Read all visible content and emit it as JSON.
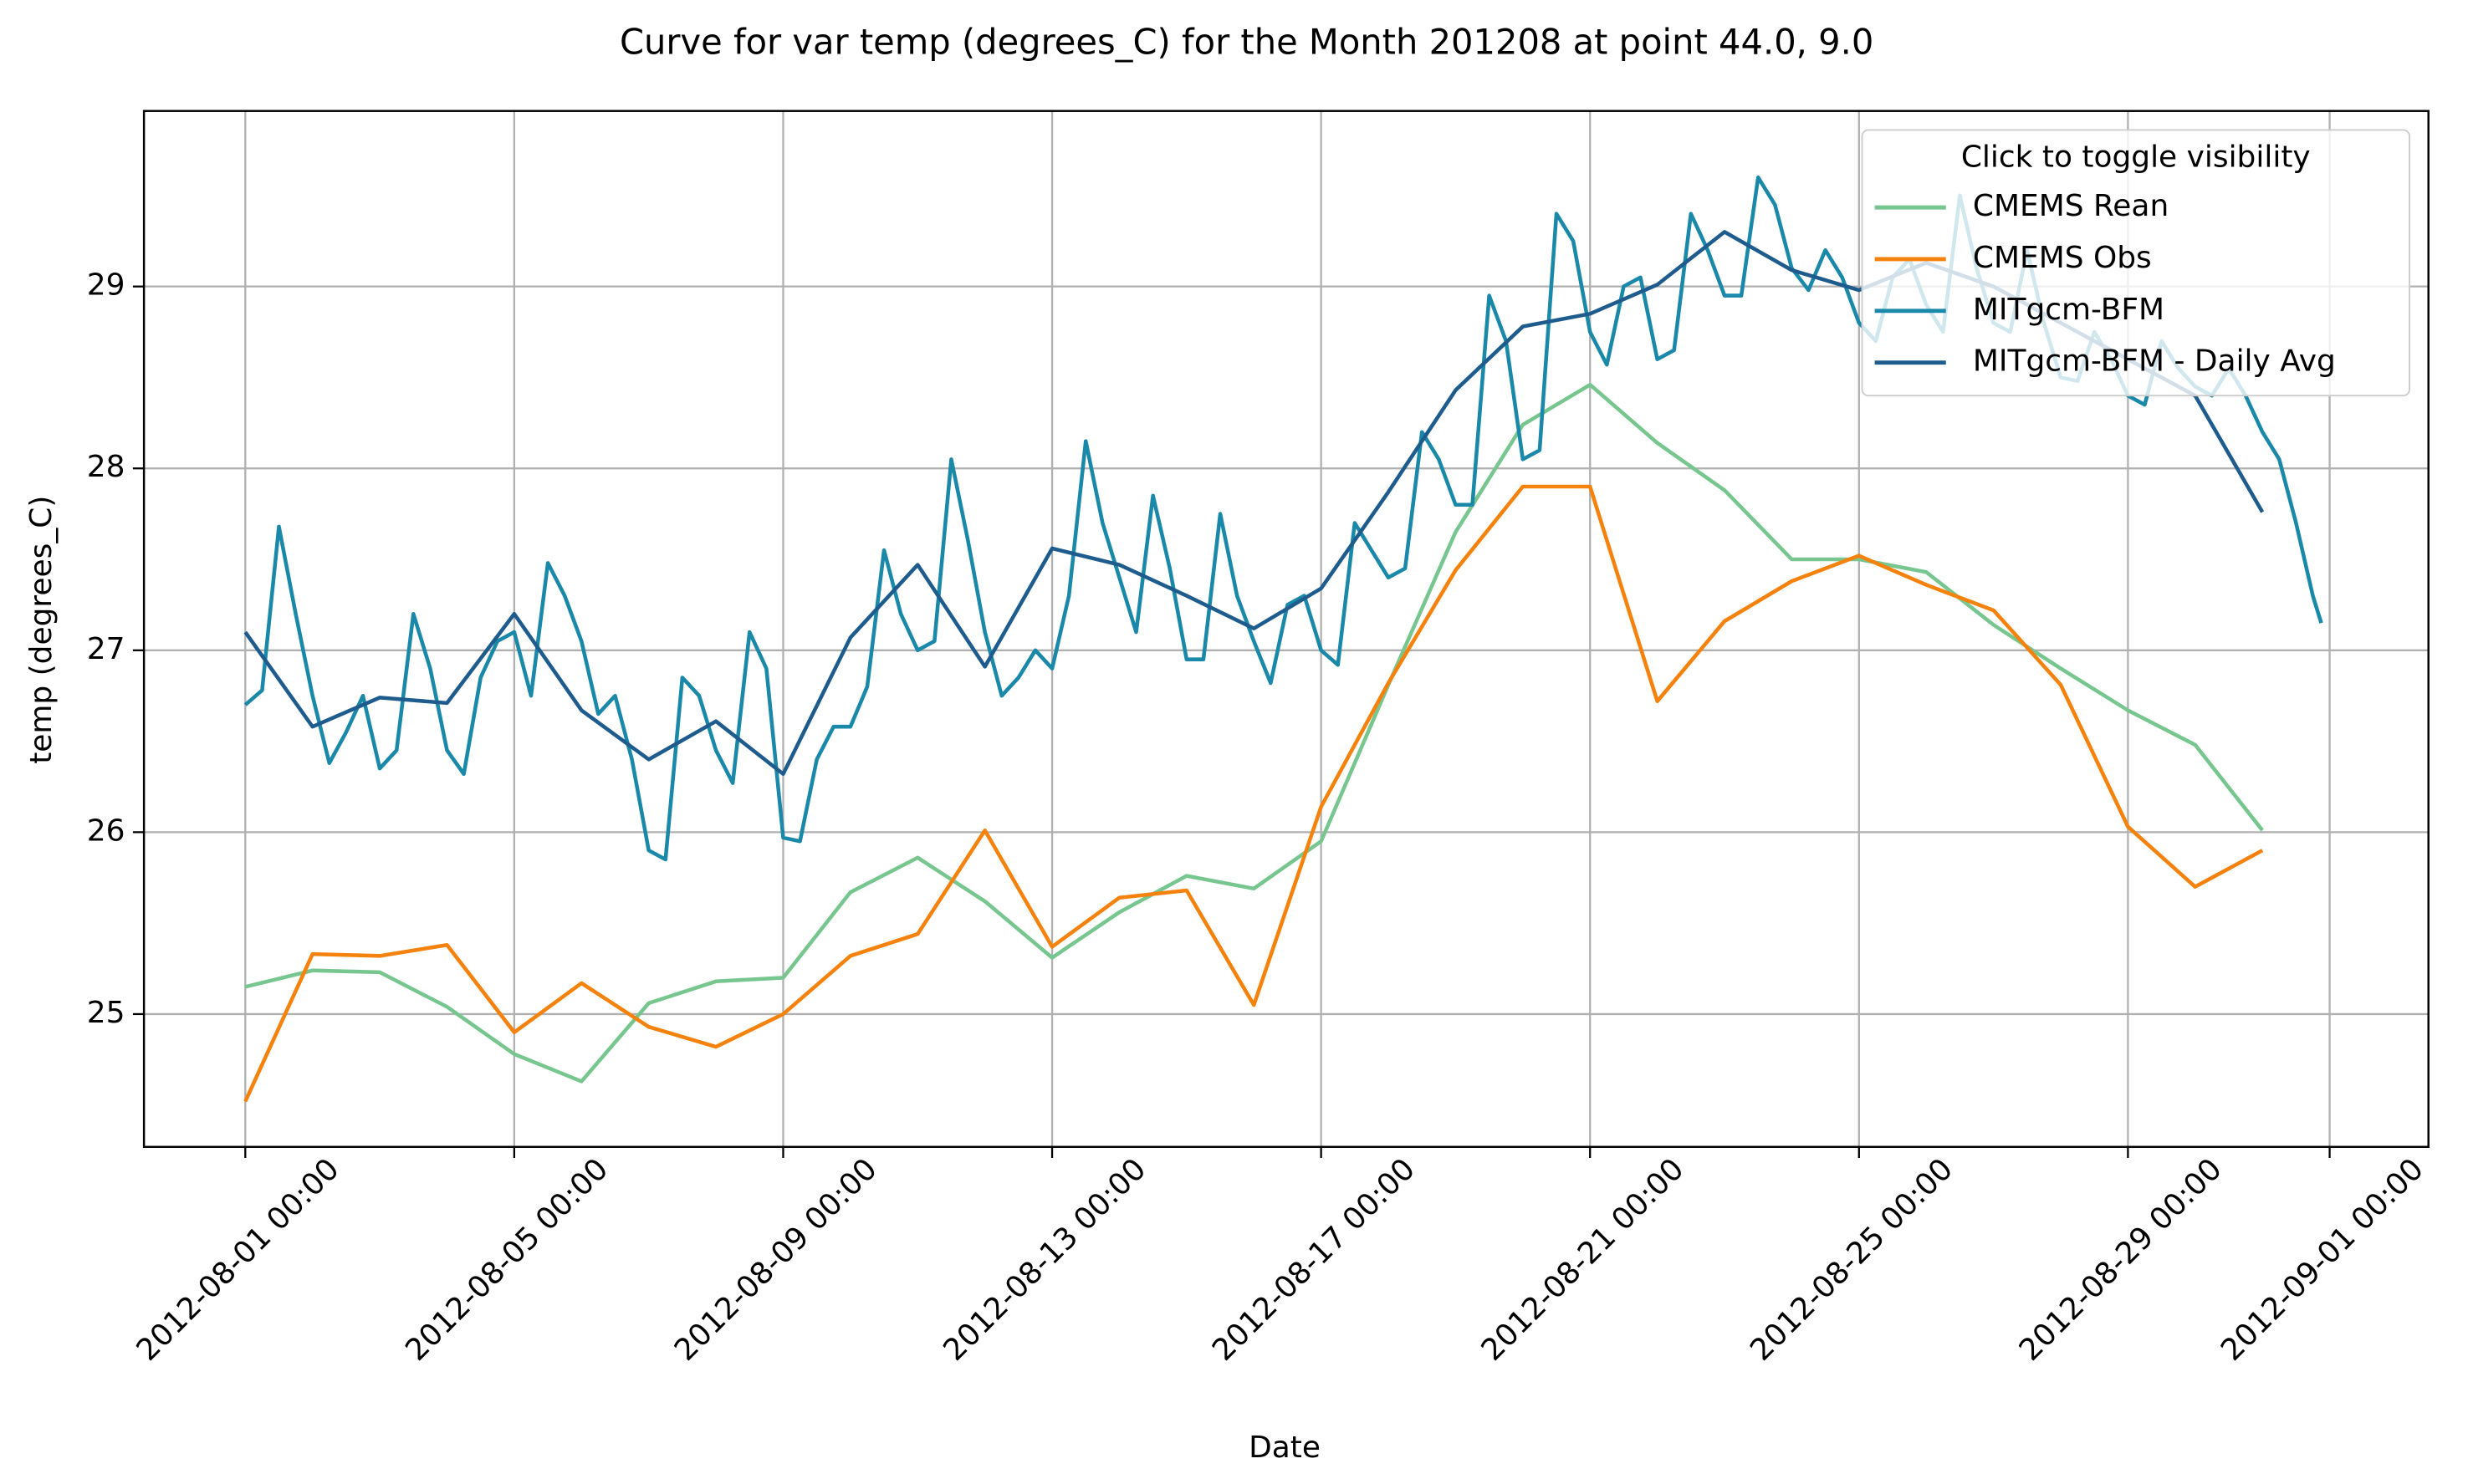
{
  "chart_data": {
    "type": "line",
    "title": "Curve for var temp (degrees_C) for the Month 201208 at point 44.0, 9.0",
    "xlabel": "Date",
    "ylabel": "temp (degrees_C)",
    "legend_title": "Click to toggle visibility",
    "legend": "upper right",
    "grid": true,
    "xlim": [
      "2012-07-30 11:50",
      "2012-09-02 11:16"
    ],
    "xticks": [
      "2012-08-01 00:00",
      "2012-08-05 00:00",
      "2012-08-09 00:00",
      "2012-08-13 00:00",
      "2012-08-17 00:00",
      "2012-08-21 00:00",
      "2012-08-25 00:00",
      "2012-08-29 00:00",
      "2012-09-01 00:00"
    ],
    "ylim": [
      24.27,
      29.965
    ],
    "yticks": [
      25,
      26,
      27,
      28,
      29
    ],
    "x": [
      "2012-08-01 00:00",
      "2012-08-02 00:00",
      "2012-08-03 00:00",
      "2012-08-04 00:00",
      "2012-08-05 00:00",
      "2012-08-06 00:00",
      "2012-08-07 00:00",
      "2012-08-08 00:00",
      "2012-08-09 00:00",
      "2012-08-10 00:00",
      "2012-08-11 00:00",
      "2012-08-12 00:00",
      "2012-08-13 00:00",
      "2012-08-14 00:00",
      "2012-08-15 00:00",
      "2012-08-16 00:00",
      "2012-08-17 00:00",
      "2012-08-18 00:00",
      "2012-08-19 00:00",
      "2012-08-20 00:00",
      "2012-08-21 00:00",
      "2012-08-22 00:00",
      "2012-08-23 00:00",
      "2012-08-24 00:00",
      "2012-08-25 00:00",
      "2012-08-26 00:00",
      "2012-08-27 00:00",
      "2012-08-28 00:00",
      "2012-08-29 00:00",
      "2012-08-30 00:00",
      "2012-08-31 00:00"
    ],
    "series": [
      {
        "name": "CMEMS Rean",
        "color": "#78c68f",
        "values": [
          25.15,
          25.24,
          25.23,
          25.04,
          24.78,
          24.63,
          25.06,
          25.18,
          25.2,
          25.67,
          25.86,
          25.62,
          25.31,
          25.56,
          25.76,
          25.69,
          25.95,
          26.81,
          27.65,
          28.24,
          28.46,
          28.14,
          27.88,
          27.5,
          27.5,
          27.43,
          27.14,
          26.9,
          26.67,
          26.48,
          26.01
        ]
      },
      {
        "name": "CMEMS Obs",
        "color": "#f5820d",
        "values": [
          24.52,
          25.33,
          25.32,
          25.38,
          24.9,
          25.17,
          24.93,
          24.82,
          25.0,
          25.32,
          25.44,
          26.01,
          25.37,
          25.64,
          25.68,
          25.05,
          26.14,
          26.82,
          27.44,
          27.9,
          27.9,
          26.72,
          27.16,
          27.38,
          27.52,
          27.36,
          27.22,
          26.81,
          26.03,
          25.7,
          25.9
        ]
      },
      {
        "name": "MITgcm-BFM",
        "color": "#1a88a8",
        "x": [
          "2012-08-01 00:00",
          "2012-08-01 06:00",
          "2012-08-01 12:00",
          "2012-08-01 18:00",
          "2012-08-02 00:00",
          "2012-08-02 06:00",
          "2012-08-02 12:00",
          "2012-08-02 18:00",
          "2012-08-03 00:00",
          "2012-08-03 06:00",
          "2012-08-03 12:00",
          "2012-08-03 18:00",
          "2012-08-04 00:00",
          "2012-08-04 06:00",
          "2012-08-04 12:00",
          "2012-08-04 18:00",
          "2012-08-05 00:00",
          "2012-08-05 06:00",
          "2012-08-05 12:00",
          "2012-08-05 18:00",
          "2012-08-06 00:00",
          "2012-08-06 06:00",
          "2012-08-06 12:00",
          "2012-08-06 18:00",
          "2012-08-07 00:00",
          "2012-08-07 06:00",
          "2012-08-07 12:00",
          "2012-08-07 18:00",
          "2012-08-08 00:00",
          "2012-08-08 06:00",
          "2012-08-08 12:00",
          "2012-08-08 18:00",
          "2012-08-09 00:00",
          "2012-08-09 06:00",
          "2012-08-09 12:00",
          "2012-08-09 18:00",
          "2012-08-10 00:00",
          "2012-08-10 06:00",
          "2012-08-10 12:00",
          "2012-08-10 18:00",
          "2012-08-11 00:00",
          "2012-08-11 06:00",
          "2012-08-11 12:00",
          "2012-08-11 18:00",
          "2012-08-12 00:00",
          "2012-08-12 06:00",
          "2012-08-12 12:00",
          "2012-08-12 18:00",
          "2012-08-13 00:00",
          "2012-08-13 06:00",
          "2012-08-13 12:00",
          "2012-08-13 18:00",
          "2012-08-14 00:00",
          "2012-08-14 06:00",
          "2012-08-14 12:00",
          "2012-08-14 18:00",
          "2012-08-15 00:00",
          "2012-08-15 06:00",
          "2012-08-15 12:00",
          "2012-08-15 18:00",
          "2012-08-16 00:00",
          "2012-08-16 06:00",
          "2012-08-16 12:00",
          "2012-08-16 18:00",
          "2012-08-17 00:00",
          "2012-08-17 06:00",
          "2012-08-17 12:00",
          "2012-08-17 18:00",
          "2012-08-18 00:00",
          "2012-08-18 06:00",
          "2012-08-18 12:00",
          "2012-08-18 18:00",
          "2012-08-19 00:00",
          "2012-08-19 06:00",
          "2012-08-19 12:00",
          "2012-08-19 18:00",
          "2012-08-20 00:00",
          "2012-08-20 06:00",
          "2012-08-20 12:00",
          "2012-08-20 18:00",
          "2012-08-21 00:00",
          "2012-08-21 06:00",
          "2012-08-21 12:00",
          "2012-08-21 18:00",
          "2012-08-22 00:00",
          "2012-08-22 06:00",
          "2012-08-22 12:00",
          "2012-08-22 18:00",
          "2012-08-23 00:00",
          "2012-08-23 06:00",
          "2012-08-23 12:00",
          "2012-08-23 18:00",
          "2012-08-24 00:00",
          "2012-08-24 06:00",
          "2012-08-24 12:00",
          "2012-08-24 18:00",
          "2012-08-25 00:00",
          "2012-08-25 06:00",
          "2012-08-25 12:00",
          "2012-08-25 18:00",
          "2012-08-26 00:00",
          "2012-08-26 06:00",
          "2012-08-26 12:00",
          "2012-08-26 18:00",
          "2012-08-27 00:00",
          "2012-08-27 06:00",
          "2012-08-27 12:00",
          "2012-08-27 18:00",
          "2012-08-28 00:00",
          "2012-08-28 06:00",
          "2012-08-28 12:00",
          "2012-08-28 18:00",
          "2012-08-29 00:00",
          "2012-08-29 06:00",
          "2012-08-29 12:00",
          "2012-08-29 18:00",
          "2012-08-30 00:00",
          "2012-08-30 06:00",
          "2012-08-30 12:00",
          "2012-08-30 18:00",
          "2012-08-31 00:00",
          "2012-08-31 06:00",
          "2012-08-31 12:00",
          "2012-08-31 18:00",
          "2012-08-31 21:00"
        ],
        "values": [
          26.7,
          26.78,
          27.68,
          27.2,
          26.75,
          26.38,
          26.55,
          26.75,
          26.35,
          26.45,
          27.2,
          26.9,
          26.45,
          26.32,
          26.85,
          27.05,
          27.1,
          26.75,
          27.48,
          27.3,
          27.05,
          26.65,
          26.75,
          26.4,
          25.9,
          25.85,
          26.85,
          26.75,
          26.45,
          26.27,
          27.1,
          26.9,
          25.97,
          25.95,
          26.4,
          26.58,
          26.58,
          26.8,
          27.55,
          27.2,
          27.0,
          27.05,
          28.05,
          27.6,
          27.1,
          26.75,
          26.85,
          27.0,
          26.9,
          27.3,
          28.15,
          27.7,
          27.4,
          27.1,
          27.85,
          27.45,
          26.95,
          26.95,
          27.75,
          27.3,
          27.05,
          26.82,
          27.25,
          27.3,
          27.0,
          26.92,
          27.7,
          27.55,
          27.4,
          27.45,
          28.2,
          28.05,
          27.8,
          27.8,
          28.95,
          28.7,
          28.05,
          28.1,
          29.4,
          29.25,
          28.75,
          28.57,
          29.0,
          29.05,
          28.6,
          28.65,
          29.4,
          29.2,
          28.95,
          28.95,
          29.6,
          29.45,
          29.1,
          28.98,
          29.2,
          29.05,
          28.8,
          28.7,
          29.05,
          29.15,
          28.9,
          28.75,
          29.5,
          29.1,
          28.8,
          28.75,
          29.2,
          28.8,
          28.5,
          28.48,
          28.75,
          28.6,
          28.4,
          28.35,
          28.7,
          28.55,
          28.45,
          28.4,
          28.55,
          28.4,
          28.2,
          28.05,
          27.7,
          27.3,
          27.15
        ]
      },
      {
        "name": "MITgcm-BFM - Daily Avg",
        "color": "#1f5c8e",
        "values": [
          27.1,
          26.58,
          26.74,
          26.71,
          27.2,
          26.67,
          26.4,
          26.61,
          26.32,
          27.07,
          27.47,
          26.91,
          27.56,
          27.47,
          27.3,
          27.12,
          27.34,
          27.87,
          28.43,
          28.78,
          28.85,
          29.01,
          29.3,
          29.09,
          28.98,
          29.13,
          29.0,
          28.8,
          28.6,
          28.4,
          27.76
        ]
      }
    ]
  }
}
